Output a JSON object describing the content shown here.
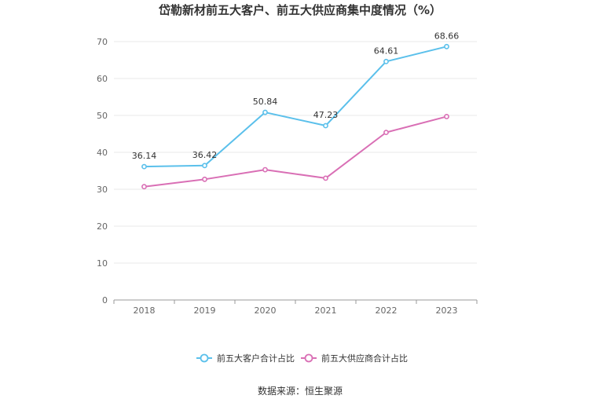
{
  "chart_data": {
    "type": "line",
    "title": "岱勒新材前五大客户、前五大供应商集中度情况（%）",
    "categories": [
      "2018",
      "2019",
      "2020",
      "2021",
      "2022",
      "2023"
    ],
    "ylim": [
      0,
      70
    ],
    "yticks": [
      0,
      10,
      20,
      30,
      40,
      50,
      60,
      70
    ],
    "grid": true,
    "legend_position": "bottom",
    "series": [
      {
        "name": "前五大客户合计占比",
        "color": "#5bc0eb",
        "values": [
          36.14,
          36.42,
          50.84,
          47.23,
          64.61,
          68.66
        ],
        "labels": [
          "36.14",
          "36.42",
          "50.84",
          "47.23",
          "64.61",
          "68.66"
        ],
        "show_labels": true
      },
      {
        "name": "前五大供应商合计占比",
        "color": "#d96fb5",
        "values": [
          30.7,
          32.7,
          35.3,
          33.0,
          45.4,
          49.7
        ],
        "show_labels": false
      }
    ],
    "source": "数据来源：恒生聚源"
  }
}
